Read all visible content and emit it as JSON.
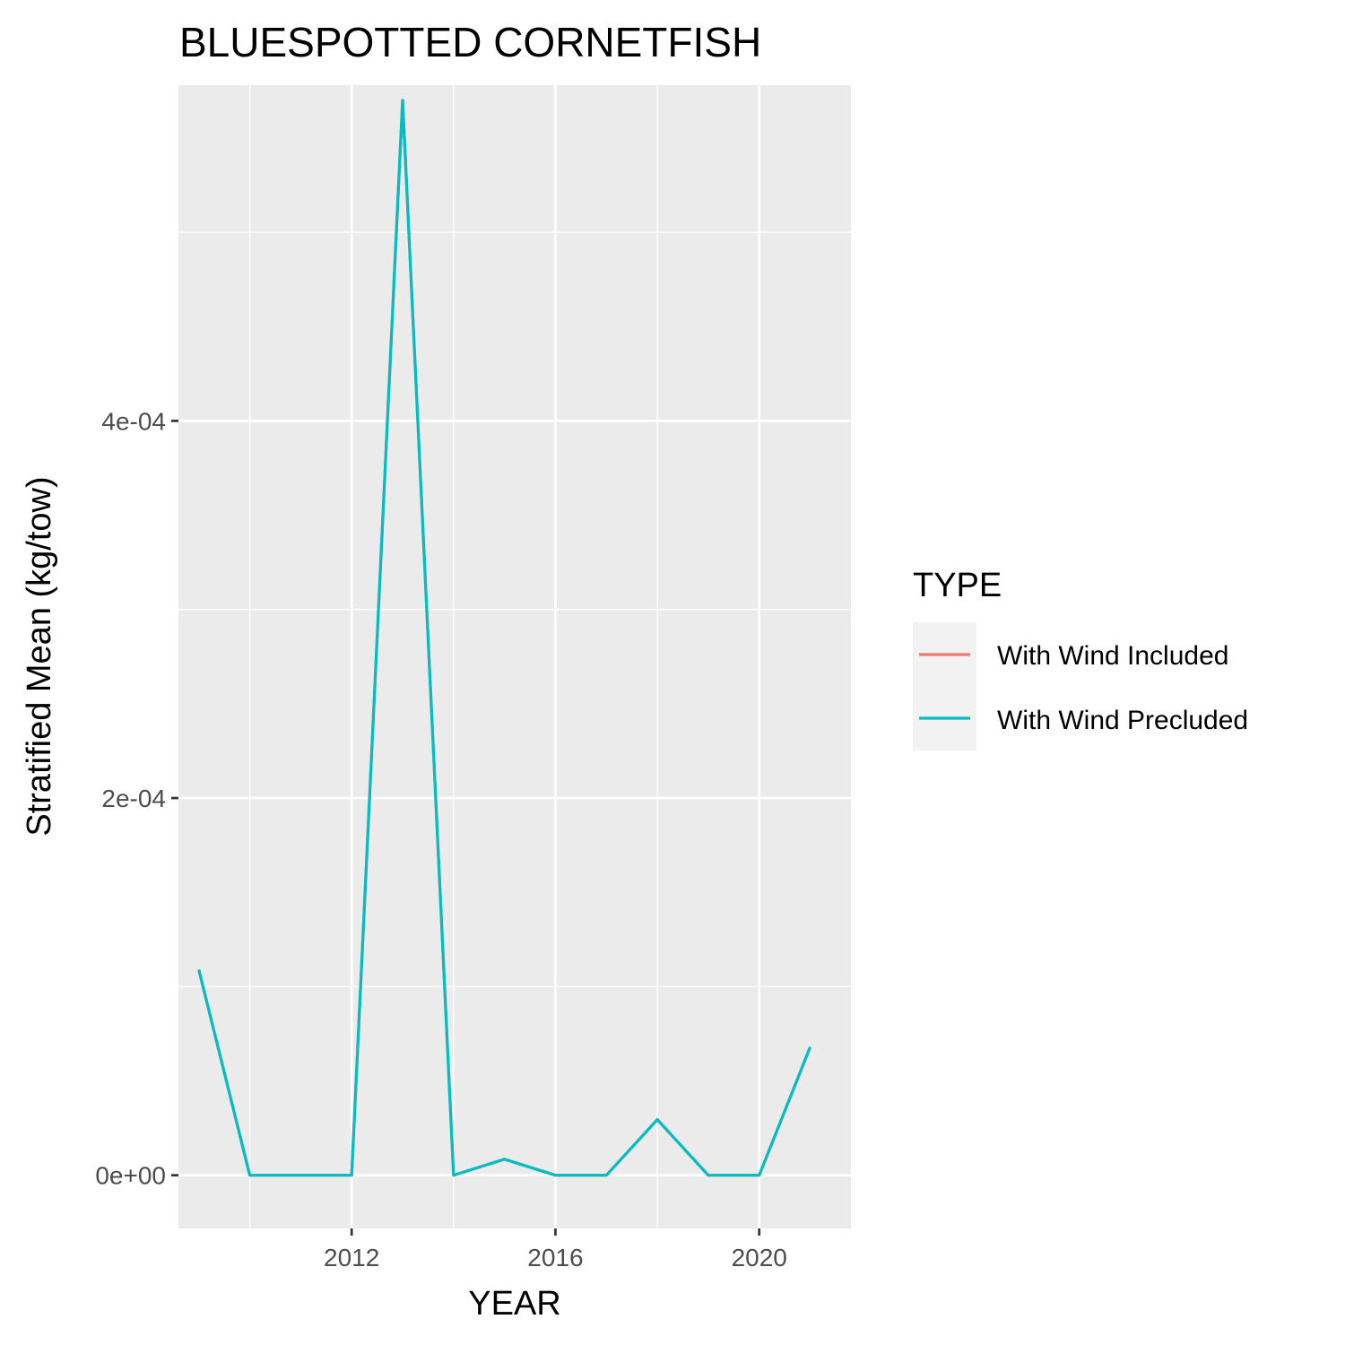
{
  "chart_data": {
    "type": "line",
    "title": "BLUESPOTTED CORNETFISH",
    "xlabel": "YEAR",
    "ylabel": "Stratified Mean (kg/tow)",
    "xlim": [
      2008.6,
      2021.8
    ],
    "ylim": [
      -2.82e-05,
      0.000578
    ],
    "x_ticks": [
      2012,
      2016,
      2020
    ],
    "x_tick_labels": [
      "2012",
      "2016",
      "2020"
    ],
    "y_ticks": [
      0,
      0.0002,
      0.0004
    ],
    "y_tick_labels": [
      "0e+00",
      "2e-04",
      "4e-04"
    ],
    "grid": true,
    "legend": {
      "title": "TYPE",
      "position": "right",
      "entries": [
        {
          "label": "With Wind Included",
          "color": "#F8766D"
        },
        {
          "label": "With Wind Precluded",
          "color": "#00BFC4"
        }
      ]
    },
    "x": [
      2009,
      2010,
      2011,
      2012,
      2013,
      2014,
      2015,
      2016,
      2017,
      2018,
      2019,
      2020,
      2021
    ],
    "series": [
      {
        "name": "With Wind Included",
        "color": "#F8766D",
        "values": [
          0.000109,
          0,
          0,
          0,
          0.00057,
          0,
          8.5e-06,
          0,
          0,
          2.95e-05,
          0,
          0,
          6.8e-05
        ]
      },
      {
        "name": "With Wind Precluded",
        "color": "#00BFC4",
        "values": [
          0.000109,
          0,
          0,
          0,
          0.00057,
          0,
          8.5e-06,
          0,
          0,
          2.95e-05,
          0,
          0,
          6.8e-05
        ]
      }
    ]
  }
}
